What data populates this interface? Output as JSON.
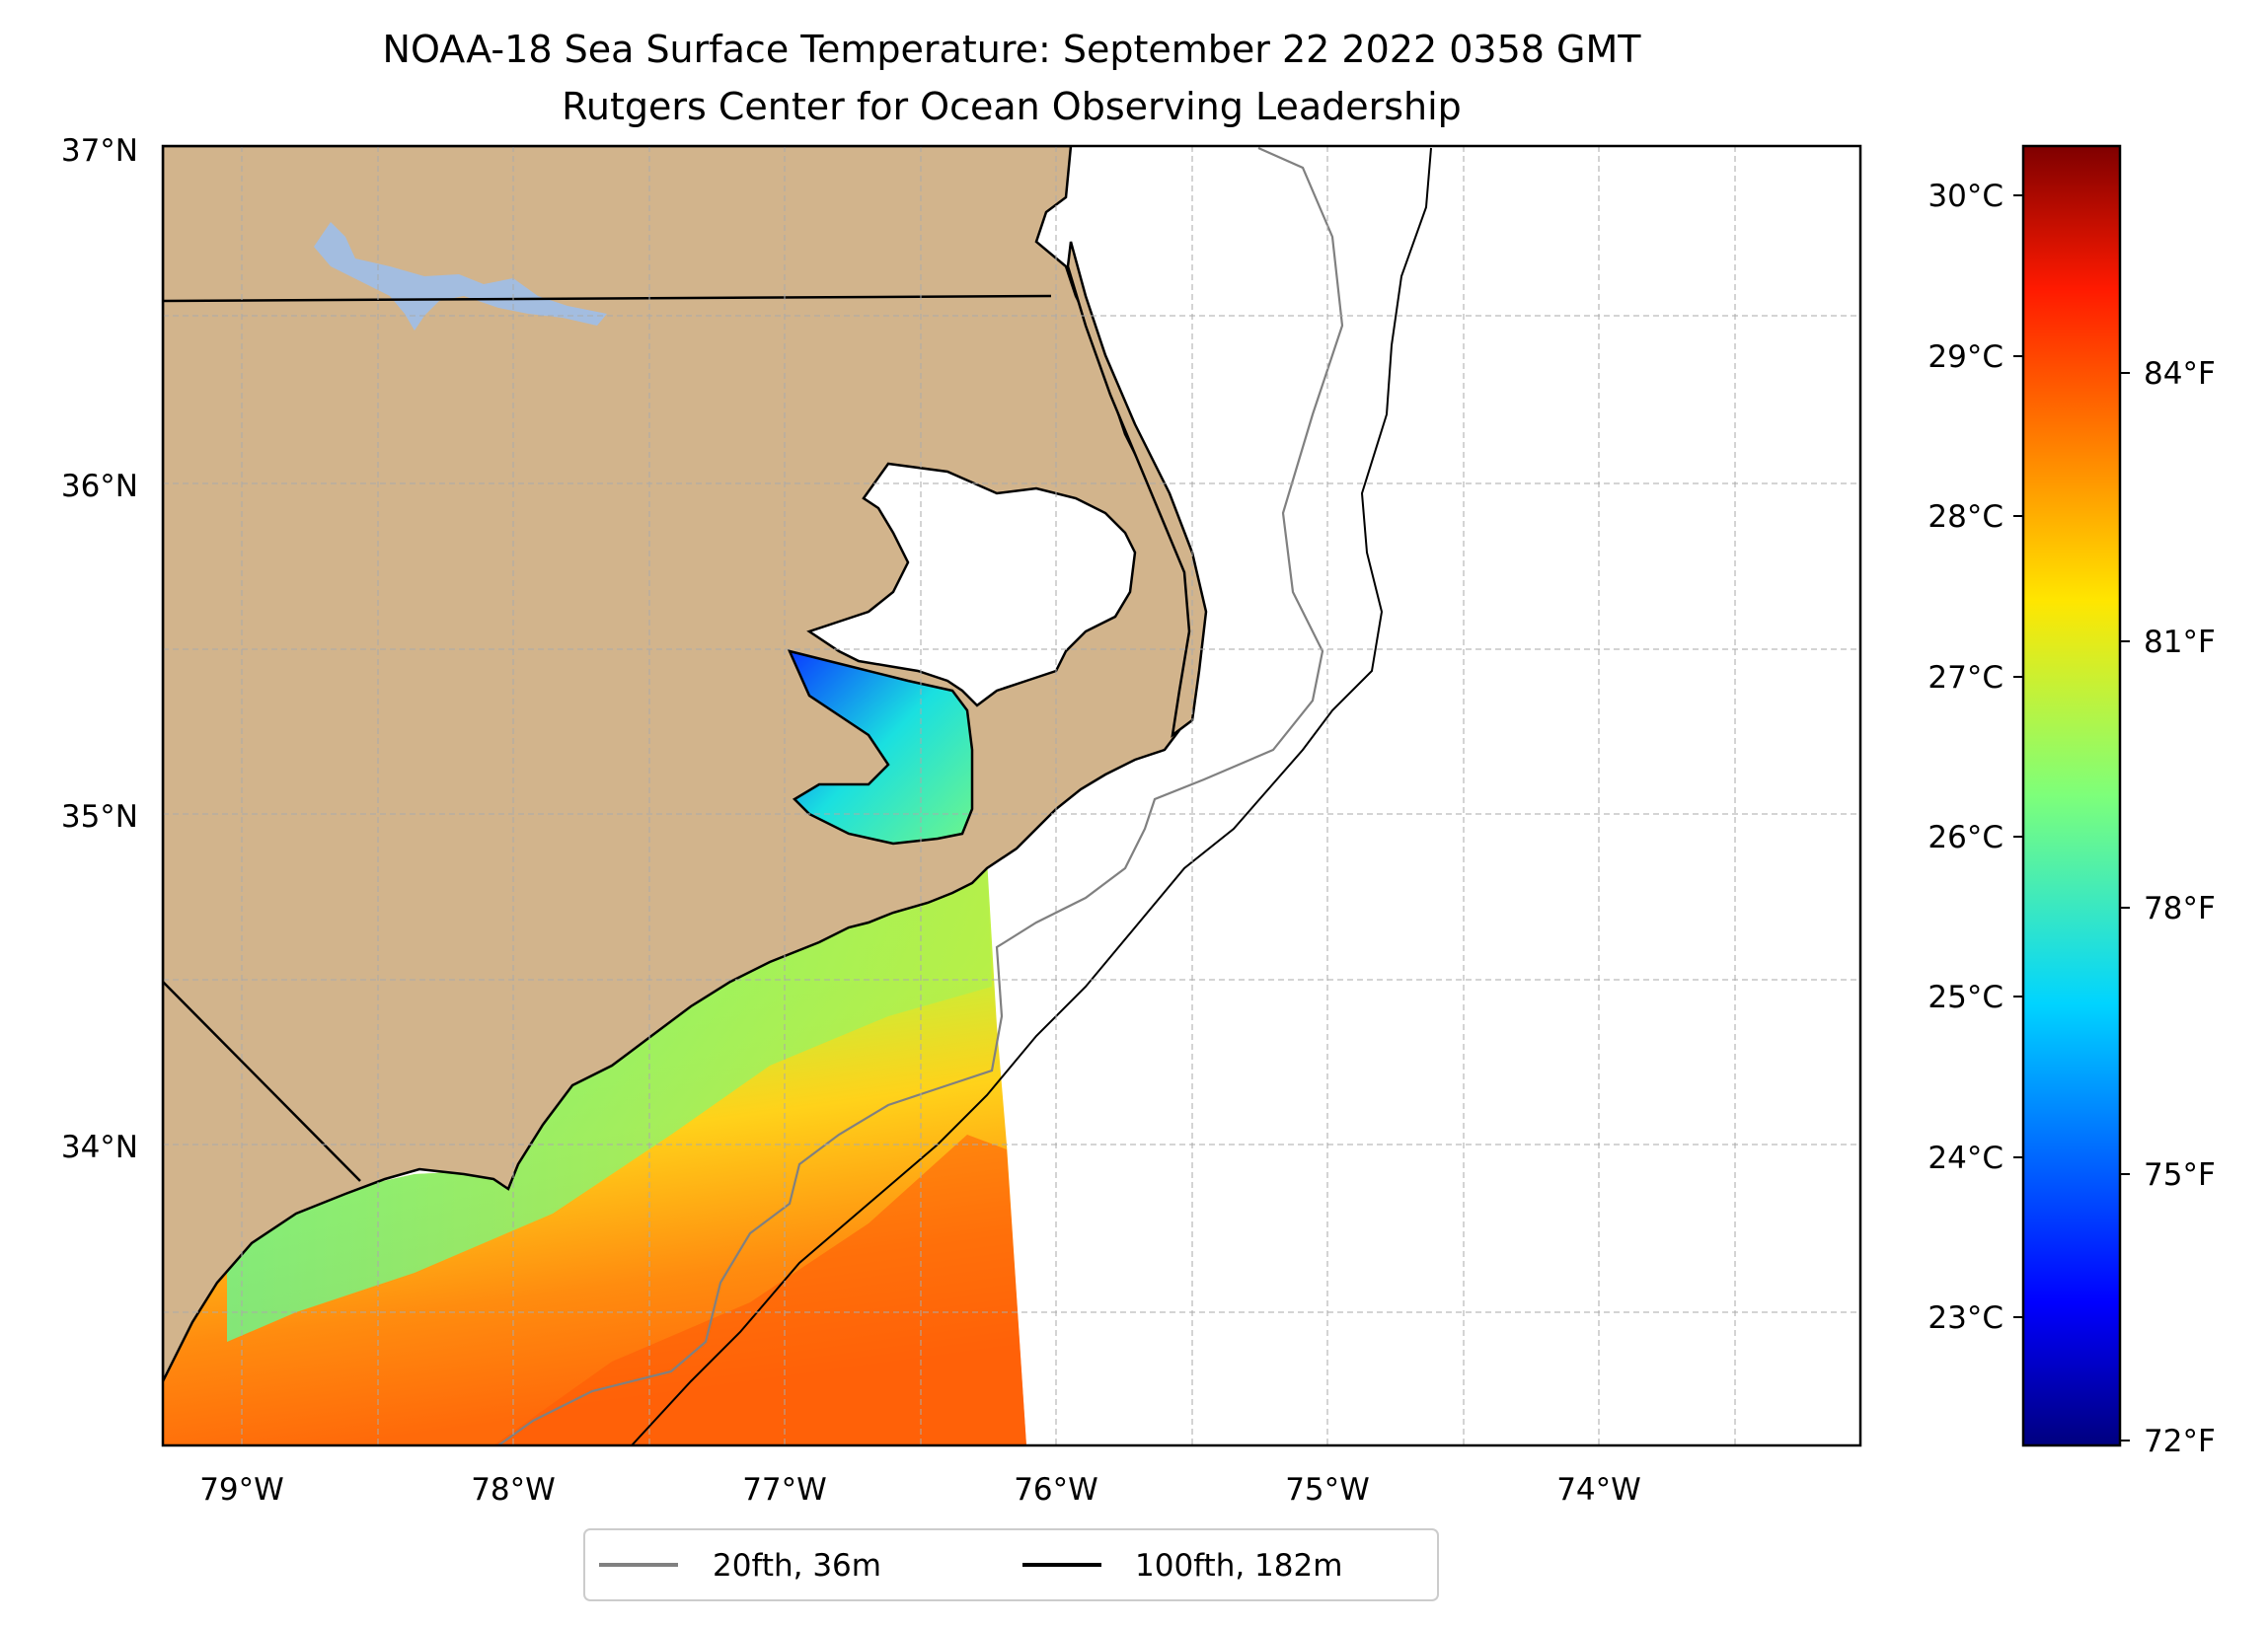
{
  "title": {
    "line1": "NOAA-18 Sea Surface Temperature: September 22 2022 0358 GMT",
    "line2": "Rutgers Center for Ocean Observing Leadership"
  },
  "map": {
    "lat_ticks": [
      "37°N",
      "36°N",
      "35°N",
      "34°N"
    ],
    "lon_ticks": [
      "79°W",
      "78°W",
      "77°W",
      "76°W",
      "75°W",
      "74°W"
    ],
    "land_color": "#d2b48c",
    "lake_color": "#a3bde0",
    "coast_color": "#000000",
    "isobath_20_color": "#808080",
    "isobath_100_color": "#000000",
    "grid": true
  },
  "colorbar": {
    "celsius_labels": [
      "30°C",
      "29°C",
      "28°C",
      "27°C",
      "26°C",
      "25°C",
      "24°C",
      "23°C"
    ],
    "fahrenheit_labels": [
      "84°F",
      "81°F",
      "78°F",
      "75°F",
      "72°F"
    ],
    "colormap": "jet"
  },
  "legend": {
    "items": [
      {
        "label": "20fth, 36m",
        "color": "#808080"
      },
      {
        "label": "100fth, 182m",
        "color": "#000000"
      }
    ]
  }
}
